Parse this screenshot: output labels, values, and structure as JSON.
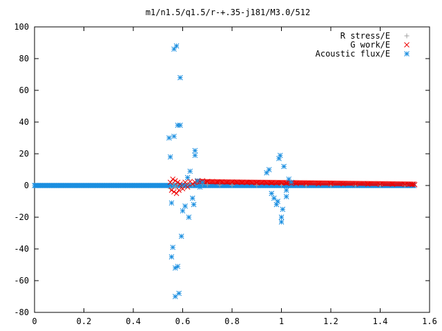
{
  "chart_data": {
    "type": "scatter",
    "title": "m1/n1.5/q1.5/r-+.35-j181/M3.0/512",
    "xlabel": "",
    "ylabel": "",
    "xlim": [
      0,
      1.6
    ],
    "ylim": [
      -80,
      100
    ],
    "x_ticks": [
      "0",
      "0.2",
      "0.4",
      "0.6",
      "0.8",
      "1",
      "1.2",
      "1.4",
      "1.6"
    ],
    "y_ticks": [
      "100",
      "80",
      "60",
      "40",
      "20",
      "0",
      "-20",
      "-40",
      "-60",
      "-80"
    ],
    "grid": false,
    "legend_position": "top-right",
    "series": [
      {
        "name": "R stress/E",
        "marker": "plus",
        "color": "#a0a0a0",
        "points": [
          [
            0.55,
            -2
          ],
          [
            0.56,
            1
          ],
          [
            0.57,
            -1
          ],
          [
            0.58,
            0.5
          ],
          [
            0.6,
            -1.5
          ],
          [
            0.62,
            1
          ],
          [
            0.64,
            0.5
          ],
          [
            0.66,
            1.5
          ],
          [
            0.68,
            0.8
          ],
          [
            0.7,
            0.5
          ],
          [
            0.75,
            0.3
          ],
          [
            0.8,
            0.2
          ],
          [
            0.9,
            0.1
          ],
          [
            1.0,
            0.2
          ],
          [
            1.1,
            0.1
          ],
          [
            1.2,
            0.1
          ],
          [
            1.3,
            0.1
          ],
          [
            1.4,
            0.1
          ],
          [
            1.5,
            0.1
          ]
        ]
      },
      {
        "name": "G work/E",
        "marker": "cross",
        "color": "#ee0000",
        "points": [
          [
            0.55,
            2
          ],
          [
            0.555,
            -3
          ],
          [
            0.56,
            4
          ],
          [
            0.565,
            -4
          ],
          [
            0.57,
            3
          ],
          [
            0.575,
            -5
          ],
          [
            0.58,
            2
          ],
          [
            0.585,
            -3
          ],
          [
            0.59,
            1
          ],
          [
            0.6,
            -2
          ],
          [
            0.61,
            2
          ],
          [
            0.62,
            -1
          ],
          [
            0.63,
            2.5
          ],
          [
            0.64,
            1
          ],
          [
            0.65,
            2
          ],
          [
            0.66,
            3
          ],
          [
            0.67,
            2.5
          ],
          [
            0.68,
            3
          ],
          [
            0.7,
            2.5
          ],
          [
            0.72,
            2.5
          ],
          [
            0.74,
            2.2
          ],
          [
            0.76,
            2.2
          ],
          [
            0.78,
            2.1
          ],
          [
            0.8,
            2
          ],
          [
            0.82,
            2
          ],
          [
            0.84,
            1.9
          ],
          [
            0.86,
            1.9
          ],
          [
            0.88,
            1.8
          ],
          [
            0.9,
            1.8
          ],
          [
            0.92,
            1.7
          ],
          [
            0.94,
            1.7
          ],
          [
            0.96,
            1.6
          ],
          [
            0.98,
            1.6
          ],
          [
            1.0,
            1.5
          ],
          [
            1.02,
            1.5
          ],
          [
            1.04,
            1.4
          ],
          [
            1.06,
            1.3
          ],
          [
            1.1,
            1.2
          ],
          [
            1.15,
            1.1
          ],
          [
            1.2,
            1.0
          ],
          [
            1.25,
            1.0
          ],
          [
            1.3,
            0.9
          ],
          [
            1.35,
            0.9
          ],
          [
            1.4,
            0.8
          ],
          [
            1.45,
            0.8
          ],
          [
            1.5,
            0.7
          ],
          [
            1.53,
            0.6
          ],
          [
            1.54,
            0.5
          ]
        ]
      },
      {
        "name": "Acoustic flux/E",
        "marker": "star",
        "color": "#1a8ee0",
        "points": [
          [
            0.545,
            30
          ],
          [
            0.55,
            18
          ],
          [
            0.555,
            -11
          ],
          [
            0.555,
            -45
          ],
          [
            0.56,
            -39
          ],
          [
            0.565,
            86
          ],
          [
            0.565,
            31
          ],
          [
            0.57,
            -52
          ],
          [
            0.57,
            -70
          ],
          [
            0.575,
            88
          ],
          [
            0.58,
            38
          ],
          [
            0.58,
            -51
          ],
          [
            0.585,
            -68
          ],
          [
            0.59,
            38
          ],
          [
            0.59,
            68
          ],
          [
            0.595,
            -32
          ],
          [
            0.6,
            -16
          ],
          [
            0.61,
            -13
          ],
          [
            0.62,
            5
          ],
          [
            0.625,
            -20
          ],
          [
            0.63,
            9
          ],
          [
            0.64,
            -8
          ],
          [
            0.645,
            -12
          ],
          [
            0.65,
            22
          ],
          [
            0.65,
            19
          ],
          [
            0.66,
            3
          ],
          [
            0.67,
            -1
          ],
          [
            0.68,
            2
          ],
          [
            0.94,
            8
          ],
          [
            0.95,
            10
          ],
          [
            0.96,
            -5
          ],
          [
            0.97,
            -8
          ],
          [
            0.98,
            -12
          ],
          [
            0.985,
            -10
          ],
          [
            0.99,
            17
          ],
          [
            0.995,
            19
          ],
          [
            1.0,
            -20
          ],
          [
            1.0,
            -23
          ],
          [
            1.005,
            -15
          ],
          [
            1.01,
            12
          ],
          [
            1.02,
            -7
          ],
          [
            1.02,
            -3
          ],
          [
            1.03,
            4
          ],
          [
            1.04,
            2
          ]
        ]
      }
    ]
  }
}
